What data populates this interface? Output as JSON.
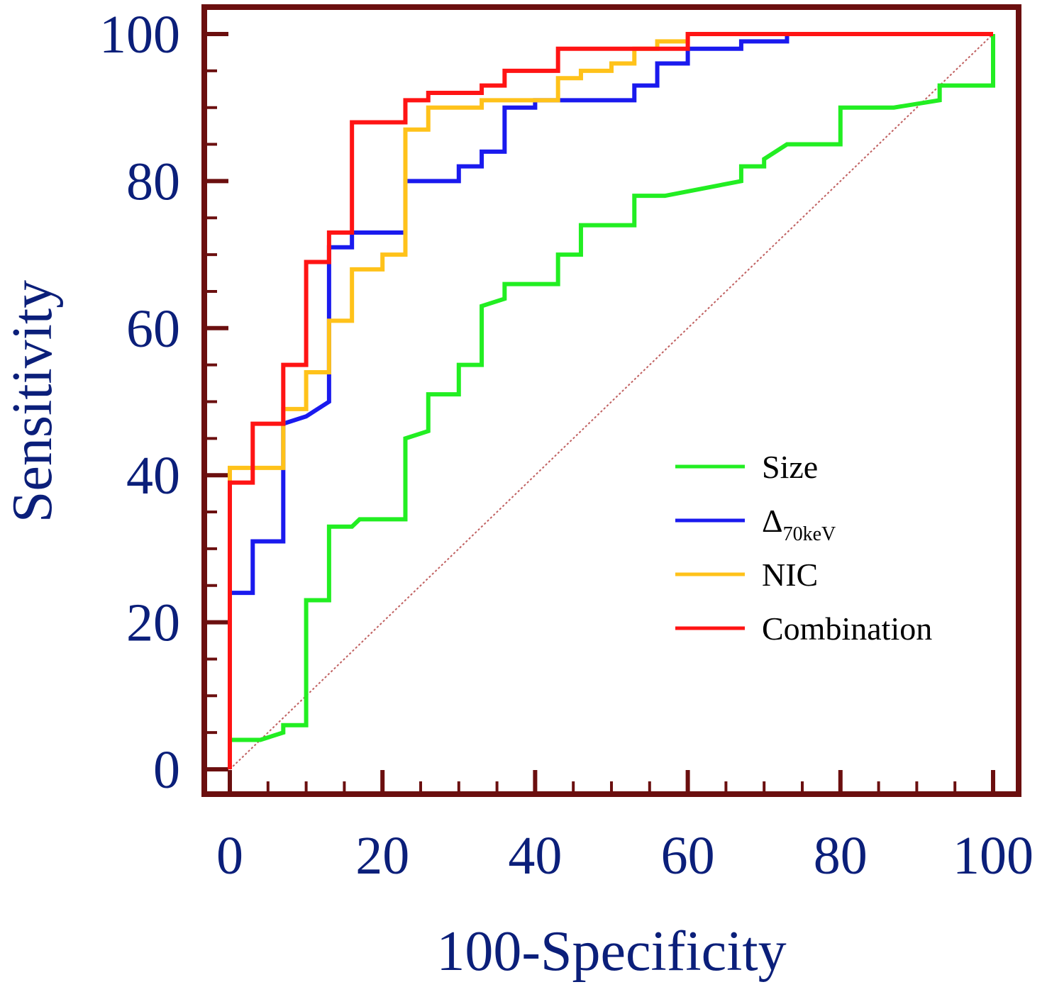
{
  "chart_data": {
    "type": "line",
    "xlabel": "100-Specificity",
    "ylabel": "Sensitivity",
    "xlim": [
      0,
      100
    ],
    "ylim": [
      0,
      100
    ],
    "x_ticks": [
      0,
      20,
      40,
      60,
      80,
      100
    ],
    "y_ticks": [
      0,
      20,
      40,
      60,
      80,
      100
    ],
    "x_tick_labels": [
      "0",
      "20",
      "40",
      "60",
      "80",
      "100"
    ],
    "y_tick_labels": [
      "0",
      "20",
      "40",
      "60",
      "80",
      "100"
    ],
    "legend_position": "center-right",
    "frame_color": "#6b0f0f",
    "diagonal": {
      "name": "Reference line",
      "color": "#c06060",
      "points": [
        [
          0,
          0
        ],
        [
          100,
          100
        ]
      ]
    },
    "series": [
      {
        "name": "Size",
        "label_main": "Size",
        "label_sub": "",
        "color": "#22ee22",
        "points": [
          [
            0,
            4
          ],
          [
            4,
            4
          ],
          [
            7,
            5
          ],
          [
            7,
            6
          ],
          [
            10,
            6
          ],
          [
            10,
            23
          ],
          [
            13,
            23
          ],
          [
            13,
            33
          ],
          [
            16,
            33
          ],
          [
            17,
            34
          ],
          [
            23,
            34
          ],
          [
            23,
            45
          ],
          [
            26,
            46
          ],
          [
            26,
            51
          ],
          [
            30,
            51
          ],
          [
            30,
            55
          ],
          [
            33,
            55
          ],
          [
            33,
            63
          ],
          [
            36,
            64
          ],
          [
            36,
            66
          ],
          [
            43,
            66
          ],
          [
            43,
            70
          ],
          [
            46,
            70
          ],
          [
            46,
            74
          ],
          [
            53,
            74
          ],
          [
            53,
            78
          ],
          [
            57,
            78
          ],
          [
            67,
            80
          ],
          [
            67,
            82
          ],
          [
            70,
            82
          ],
          [
            70,
            83
          ],
          [
            73,
            85
          ],
          [
            80,
            85
          ],
          [
            80,
            90
          ],
          [
            87,
            90
          ],
          [
            93,
            91
          ],
          [
            93,
            93
          ],
          [
            100,
            93
          ],
          [
            100,
            100
          ]
        ]
      },
      {
        "name": "Δ70keV",
        "label_main": "Δ",
        "label_sub": "70keV",
        "color": "#1a1aee",
        "points": [
          [
            0,
            0
          ],
          [
            0,
            24
          ],
          [
            3,
            24
          ],
          [
            3,
            31
          ],
          [
            7,
            31
          ],
          [
            7,
            47
          ],
          [
            10,
            48
          ],
          [
            13,
            50
          ],
          [
            13,
            71
          ],
          [
            16,
            71
          ],
          [
            16,
            73
          ],
          [
            23,
            73
          ],
          [
            23,
            80
          ],
          [
            30,
            80
          ],
          [
            30,
            82
          ],
          [
            33,
            82
          ],
          [
            33,
            84
          ],
          [
            36,
            84
          ],
          [
            36,
            90
          ],
          [
            40,
            90
          ],
          [
            40,
            91
          ],
          [
            53,
            91
          ],
          [
            53,
            93
          ],
          [
            56,
            93
          ],
          [
            56,
            96
          ],
          [
            60,
            96
          ],
          [
            60,
            98
          ],
          [
            67,
            98
          ],
          [
            67,
            99
          ],
          [
            73,
            99
          ],
          [
            73,
            100
          ],
          [
            100,
            100
          ]
        ]
      },
      {
        "name": "NIC",
        "label_main": "NIC",
        "label_sub": "",
        "color": "#ffc21a",
        "points": [
          [
            0,
            0
          ],
          [
            0,
            41
          ],
          [
            7,
            41
          ],
          [
            7,
            49
          ],
          [
            10,
            49
          ],
          [
            10,
            54
          ],
          [
            13,
            54
          ],
          [
            13,
            61
          ],
          [
            16,
            61
          ],
          [
            16,
            68
          ],
          [
            20,
            68
          ],
          [
            20,
            70
          ],
          [
            23,
            70
          ],
          [
            23,
            87
          ],
          [
            26,
            87
          ],
          [
            26,
            90
          ],
          [
            33,
            90
          ],
          [
            33,
            91
          ],
          [
            43,
            91
          ],
          [
            43,
            94
          ],
          [
            46,
            94
          ],
          [
            46,
            95
          ],
          [
            50,
            95
          ],
          [
            50,
            96
          ],
          [
            53,
            96
          ],
          [
            53,
            98
          ],
          [
            56,
            98
          ],
          [
            56,
            99
          ],
          [
            60,
            99
          ],
          [
            60,
            100
          ],
          [
            100,
            100
          ]
        ]
      },
      {
        "name": "Combination",
        "label_main": "Combination",
        "label_sub": "",
        "color": "#ff1414",
        "points": [
          [
            0,
            0
          ],
          [
            0,
            39
          ],
          [
            3,
            39
          ],
          [
            3,
            47
          ],
          [
            7,
            47
          ],
          [
            7,
            55
          ],
          [
            10,
            55
          ],
          [
            10,
            69
          ],
          [
            13,
            69
          ],
          [
            13,
            73
          ],
          [
            16,
            73
          ],
          [
            16,
            88
          ],
          [
            23,
            88
          ],
          [
            23,
            91
          ],
          [
            26,
            91
          ],
          [
            26,
            92
          ],
          [
            33,
            92
          ],
          [
            33,
            93
          ],
          [
            36,
            93
          ],
          [
            36,
            95
          ],
          [
            43,
            95
          ],
          [
            43,
            98
          ],
          [
            56,
            98
          ],
          [
            60,
            98
          ],
          [
            60,
            100
          ],
          [
            100,
            100
          ]
        ]
      }
    ]
  }
}
